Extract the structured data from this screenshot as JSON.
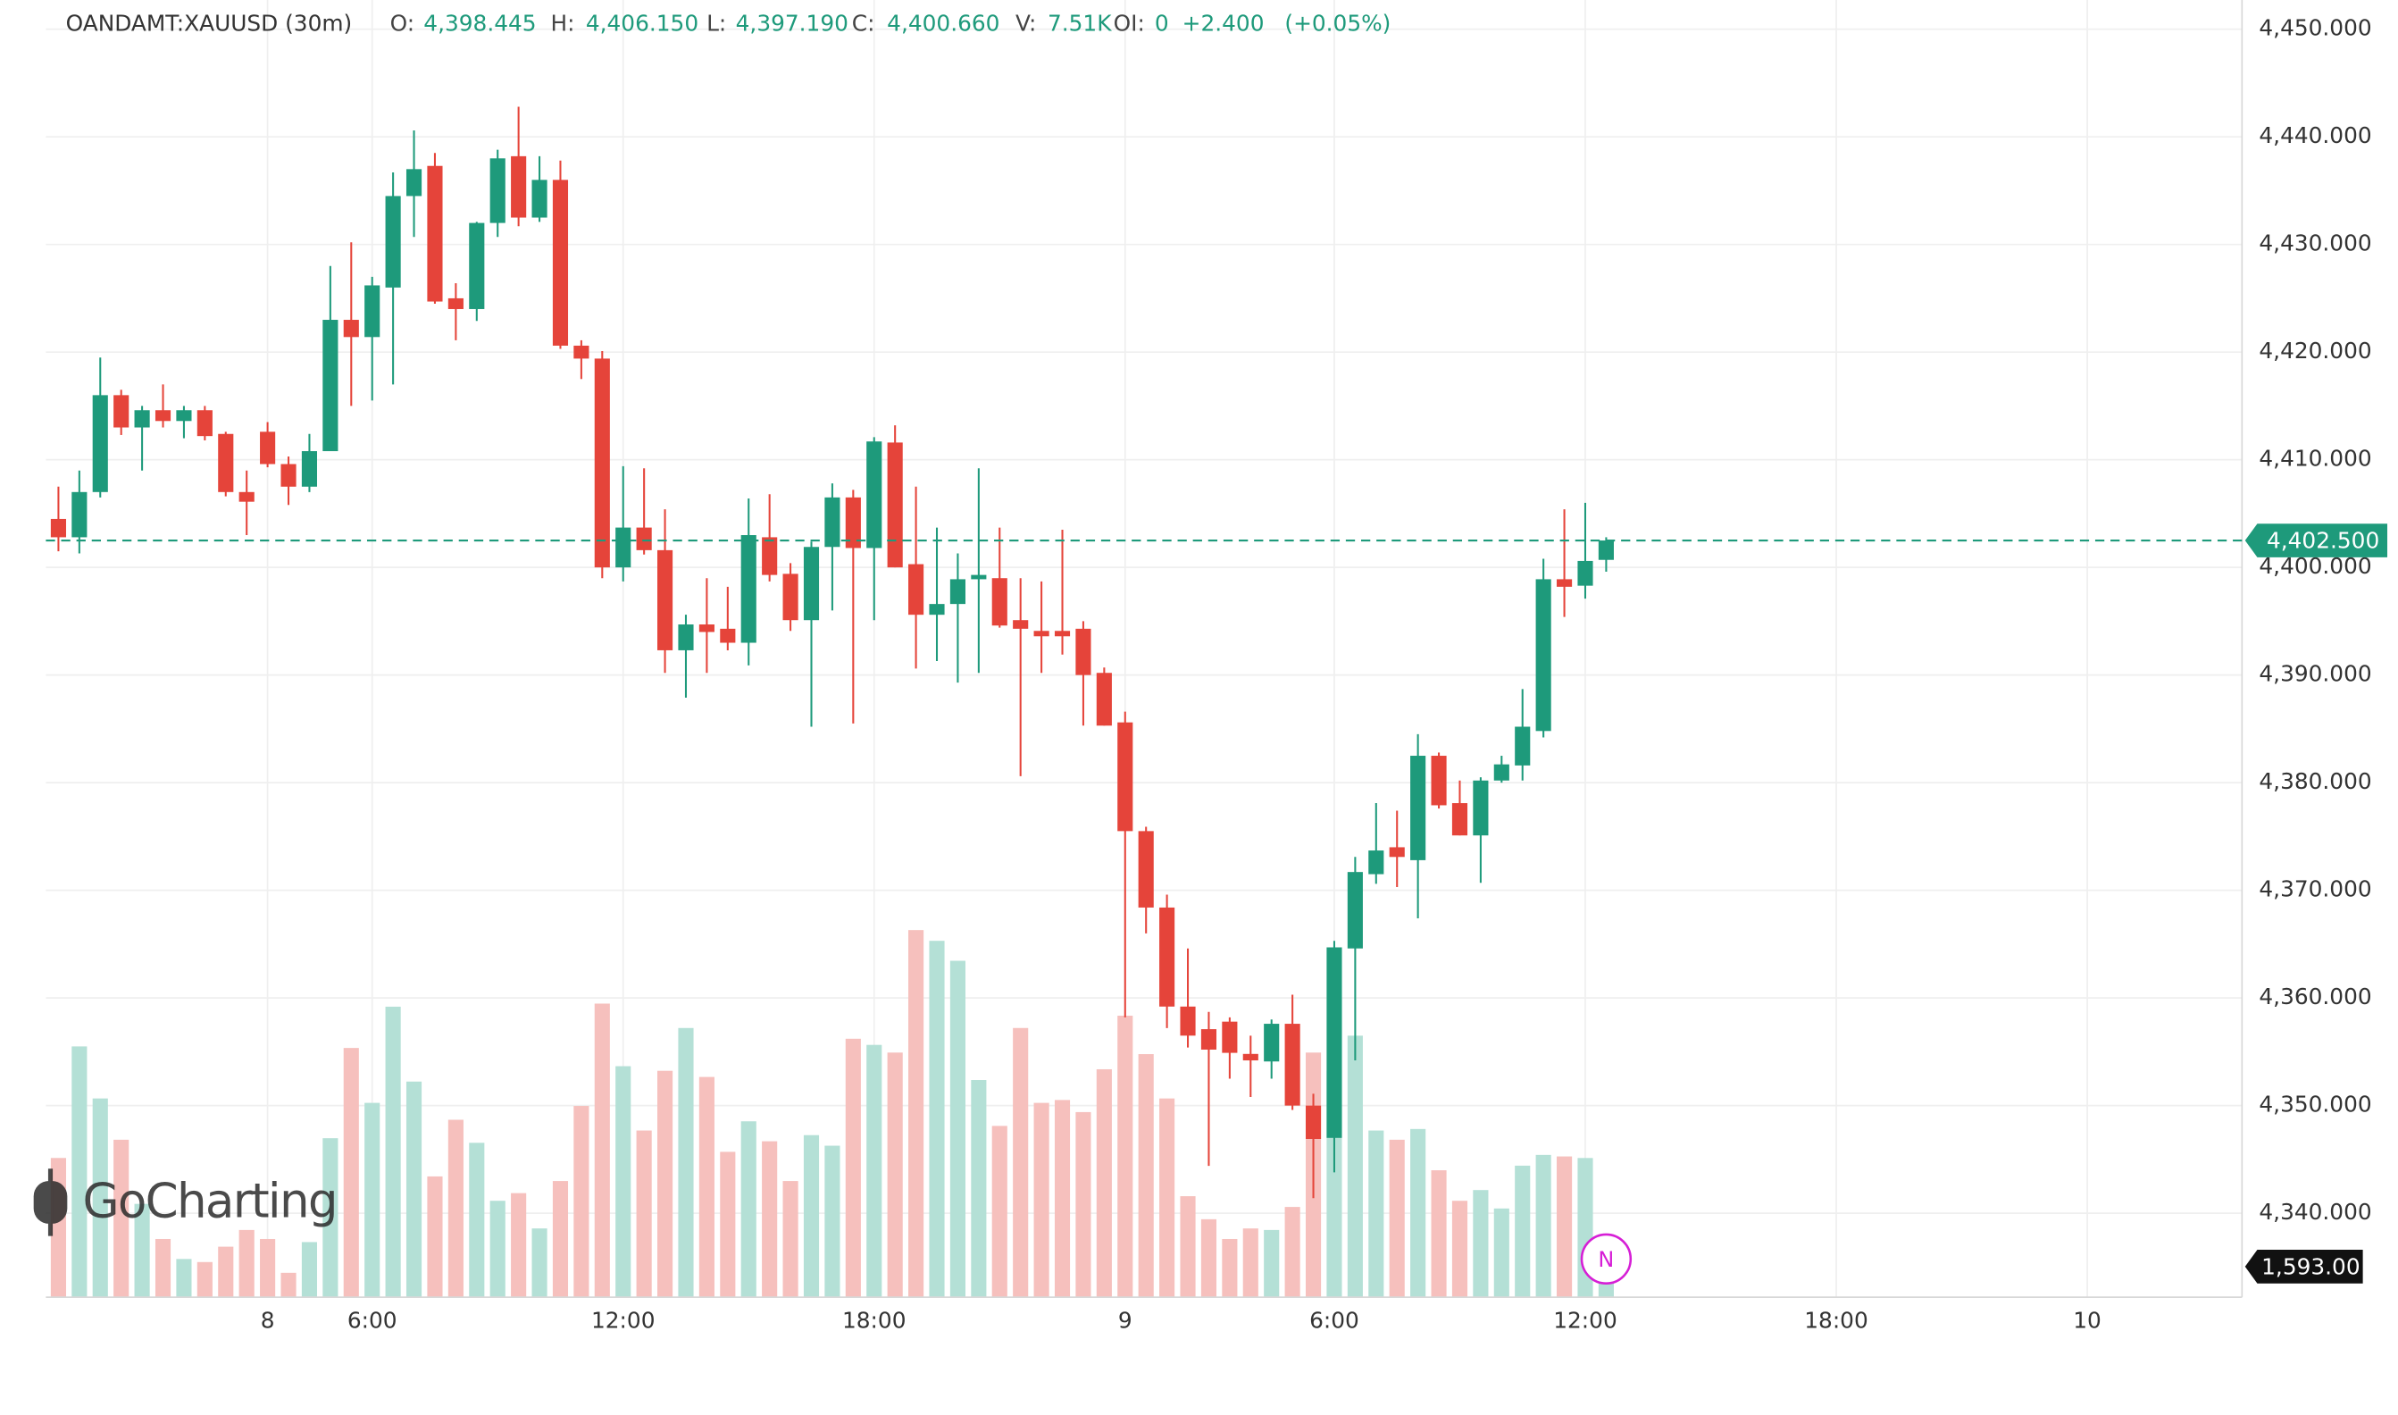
{
  "chart_data": {
    "type": "candlestick",
    "header": {
      "symbol": "OANDAMT:XAUUSD (30m)",
      "fields": [
        {
          "label": "O:",
          "value": "4,398.445"
        },
        {
          "label": "H:",
          "value": "4,406.150"
        },
        {
          "label": "L:",
          "value": "4,397.190"
        },
        {
          "label": "C:",
          "value": "4,400.660"
        },
        {
          "label": "V:",
          "value": "7.51K"
        },
        {
          "label": "OI:",
          "value": "0"
        }
      ],
      "change": "+2.400",
      "change_pct": "(+0.05%)"
    },
    "watermark": "GoCharting",
    "marker": "N",
    "x": [
      0,
      1,
      2,
      3,
      4,
      5,
      6,
      7,
      8,
      9,
      10,
      11,
      12,
      13,
      14,
      15,
      16,
      17,
      18,
      19,
      20,
      21,
      22,
      23,
      24,
      25,
      26,
      27,
      28,
      29,
      30,
      31,
      32,
      33,
      34,
      35,
      36,
      37,
      38,
      39,
      40,
      41,
      42,
      43,
      44,
      45,
      46,
      47,
      48,
      49,
      50,
      51,
      52,
      53,
      54,
      55,
      56,
      57,
      58,
      59,
      60,
      61,
      62,
      63,
      64,
      65,
      66,
      67,
      68,
      69,
      70,
      71,
      72,
      73,
      74
    ],
    "open": [
      4404.5,
      4402.8,
      4407,
      4416,
      4413,
      4414.6,
      4413.6,
      4414.6,
      4412.4,
      4407,
      4412.6,
      4409.6,
      4407.5,
      4410.8,
      4423,
      4421.4,
      4426,
      4434.5,
      4437.3,
      4425,
      4424,
      4432,
      4438.2,
      4432.5,
      4436,
      4420.6,
      4419.4,
      4400,
      4403.7,
      4401.6,
      4392.3,
      4394.7,
      4394.3,
      4393,
      4402.8,
      4399.4,
      4395.1,
      4401.9,
      4406.5,
      4401.8,
      4411.6,
      4400.3,
      4395.6,
      4396.6,
      4398.9,
      4399,
      4395.1,
      4394.1,
      4394.1,
      4394.3,
      4390.2,
      4385.6,
      4375.5,
      4368.4,
      4359.2,
      4357.1,
      4357.8,
      4354.8,
      4354.1,
      4357.6,
      4350,
      4347,
      4364.6,
      4371.5,
      4374,
      4372.8,
      4382.5,
      4378.1,
      4375.1,
      4380.2,
      4381.6,
      4384.8,
      4398.9,
      4398.3,
      4400.7
    ],
    "high": [
      4407.5,
      4409,
      4419.5,
      4416.5,
      4415,
      4417,
      4415,
      4415,
      4412.6,
      4409,
      4413.5,
      4410.3,
      4412.4,
      4428,
      4430.2,
      4427,
      4436.7,
      4440.6,
      4438.5,
      4426.4,
      4432.1,
      4438.8,
      4442.8,
      4438.2,
      4437.8,
      4421.1,
      4420.1,
      4409.4,
      4409.2,
      4405.4,
      4395.6,
      4399,
      4398.2,
      4406.4,
      4406.8,
      4400.4,
      4402.4,
      4407.8,
      4407.2,
      4412.1,
      4413.2,
      4407.5,
      4403.7,
      4401.3,
      4409.2,
      4403.7,
      4399,
      4398.7,
      4403.5,
      4395,
      4390.7,
      4386.6,
      4375.9,
      4369.6,
      4364.6,
      4358.7,
      4358.2,
      4356.5,
      4358,
      4360.3,
      4351.1,
      4365.3,
      4373.1,
      4378.1,
      4377.4,
      4384.5,
      4382.8,
      4380.2,
      4380.5,
      4382.5,
      4388.7,
      4400.8,
      4405.4,
      4406,
      4402.8
    ],
    "low": [
      4401.5,
      4401.3,
      4406.5,
      4412.3,
      4409,
      4413,
      4412,
      4411.8,
      4406.6,
      4403,
      4409.3,
      4405.8,
      4407,
      4410.8,
      4415,
      4415.5,
      4417,
      4430.7,
      4424.5,
      4421.1,
      4422.9,
      4430.7,
      4431.7,
      4432.1,
      4420.3,
      4417.5,
      4399,
      4398.7,
      4401.2,
      4390.2,
      4387.9,
      4390.2,
      4392.3,
      4390.9,
      4398.7,
      4394.1,
      4385.2,
      4396,
      4385.5,
      4395.1,
      4400,
      4390.6,
      4391.3,
      4389.3,
      4390.2,
      4394.4,
      4380.6,
      4390.2,
      4391.9,
      4385.3,
      4385.3,
      4358.2,
      4366,
      4357.2,
      4355.4,
      4344.4,
      4352.5,
      4350.8,
      4352.5,
      4349.6,
      4341.4,
      4343.8,
      4354.2,
      4370.6,
      4370.3,
      4367.4,
      4377.6,
      4375.1,
      4370.7,
      4380,
      4380.2,
      4384.2,
      4395.4,
      4397.1,
      4399.6
    ],
    "close": [
      4402.8,
      4407,
      4416,
      4413,
      4414.6,
      4413.6,
      4414.6,
      4412.2,
      4407,
      4406.1,
      4409.6,
      4407.5,
      4410.8,
      4423,
      4421.4,
      4426.2,
      4434.5,
      4437,
      4424.7,
      4424,
      4432,
      4438,
      4432.5,
      4436,
      4420.6,
      4419.4,
      4400,
      4403.7,
      4401.6,
      4392.3,
      4394.7,
      4394,
      4393,
      4403,
      4399.3,
      4395.1,
      4401.9,
      4406.5,
      4401.8,
      4411.7,
      4400,
      4395.6,
      4396.6,
      4398.9,
      4399.3,
      4394.6,
      4394.3,
      4393.6,
      4393.6,
      4390,
      4385.3,
      4375.5,
      4368.4,
      4359.2,
      4356.5,
      4355.2,
      4354.9,
      4354.2,
      4357.6,
      4350,
      4346.9,
      4364.7,
      4371.7,
      4373.7,
      4373.1,
      4382.5,
      4377.9,
      4375.1,
      4380.2,
      4381.7,
      4385.2,
      4398.9,
      4398.2,
      4400.6,
      4402.5
    ],
    "volume": [
      7250,
      13060,
      10350,
      8200,
      4860,
      3030,
      1990,
      1830,
      2630,
      3500,
      3030,
      1270,
      2870,
      8280,
      12980,
      10120,
      15130,
      11230,
      6290,
      9240,
      8040,
      5020,
      5420,
      3580,
      6050,
      9960,
      15290,
      12030,
      8680,
      11790,
      14020,
      11470,
      7570,
      9160,
      8120,
      6050,
      8440,
      7890,
      13460,
      13140,
      12740,
      19120,
      18560,
      17520,
      11310,
      8920,
      14020,
      10120,
      10270,
      9640,
      11870,
      14660,
      12660,
      10350,
      5260,
      4060,
      3030,
      3580,
      3500,
      4700,
      12740,
      11790,
      13620,
      8680,
      8200,
      8760,
      6610,
      5020,
      5580,
      4620,
      6850,
      7410,
      7330,
      7250,
      1593
    ],
    "up_color": "#1e9a7b",
    "down_color": "#e5443a",
    "volume_up_color": "#b4e0d6",
    "volume_down_color": "#f6c0bd",
    "last_price": 4402.5,
    "last_price_label": "4,402.500",
    "last_volume_label": "1,593.00",
    "xlim": [
      -0.6,
      104.4
    ],
    "xticks": [
      {
        "value": 10,
        "label": "8"
      },
      {
        "value": 15,
        "label": "6:00"
      },
      {
        "value": 27,
        "label": "12:00"
      },
      {
        "value": 39,
        "label": "18:00"
      },
      {
        "value": 51,
        "label": "9"
      },
      {
        "value": 61,
        "label": "6:00"
      },
      {
        "value": 73,
        "label": "12:00"
      },
      {
        "value": 85,
        "label": "18:00"
      },
      {
        "value": 97,
        "label": "10"
      }
    ],
    "ylim": [
      4332.2,
      4452
    ],
    "yticks": [
      {
        "value": 4340,
        "label": "4,340.000"
      },
      {
        "value": 4350,
        "label": "4,350.000"
      },
      {
        "value": 4360,
        "label": "4,360.000"
      },
      {
        "value": 4370,
        "label": "4,370.000"
      },
      {
        "value": 4380,
        "label": "4,380.000"
      },
      {
        "value": 4390,
        "label": "4,390.000"
      },
      {
        "value": 4400,
        "label": "4,400.000"
      },
      {
        "value": 4410,
        "label": "4,410.000"
      },
      {
        "value": 4420,
        "label": "4,420.000"
      },
      {
        "value": 4430,
        "label": "4,430.000"
      },
      {
        "value": 4440,
        "label": "4,440.000"
      },
      {
        "value": 4450,
        "label": "4,450.000"
      }
    ],
    "grid": true
  }
}
